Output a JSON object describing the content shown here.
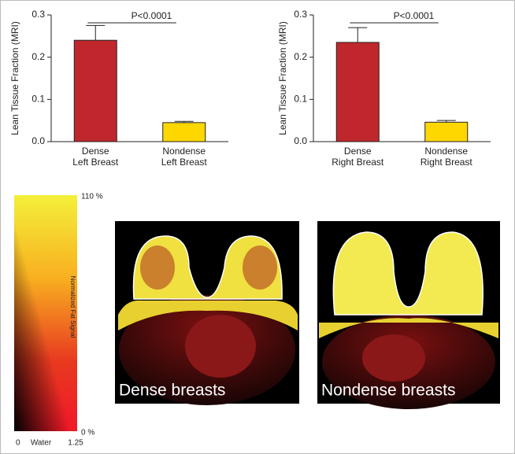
{
  "chart_data": [
    {
      "type": "bar",
      "ylabel": "Lean Tissue Fraction (MRI)",
      "annotation": "P<0.0001",
      "categories": [
        "Dense\nLeft Breast",
        "Nondense\nLeft Breast"
      ],
      "values": [
        0.24,
        0.045
      ],
      "errors": [
        0.035,
        0.003
      ],
      "colors": [
        "#c0272d",
        "#ffd700"
      ],
      "ylim": [
        0,
        0.3
      ],
      "yticks": [
        {
          "value": 0,
          "label": "0.0"
        },
        0.1,
        0.2,
        0.3
      ]
    },
    {
      "type": "bar",
      "ylabel": "Lean Tissue Fraction (MRI)",
      "annotation": "P<0.0001",
      "categories": [
        "Dense\nRight Breast",
        "Nondense\nRight Breast"
      ],
      "values": [
        0.235,
        0.046
      ],
      "errors": [
        0.035,
        0.004
      ],
      "colors": [
        "#c0272d",
        "#ffd700"
      ],
      "ylim": [
        0,
        0.3
      ],
      "yticks": [
        {
          "value": 0,
          "label": "0.0"
        },
        0.1,
        0.2,
        0.3
      ]
    }
  ],
  "colorbar": {
    "top_label": "110 %",
    "bottom_label": "0 %",
    "title": "Normalized Fat Signal",
    "x_left": "0",
    "x_mid": "Water",
    "x_right": "1.25"
  },
  "images": [
    {
      "label": "Dense breasts"
    },
    {
      "label": "Nondense breasts"
    }
  ]
}
